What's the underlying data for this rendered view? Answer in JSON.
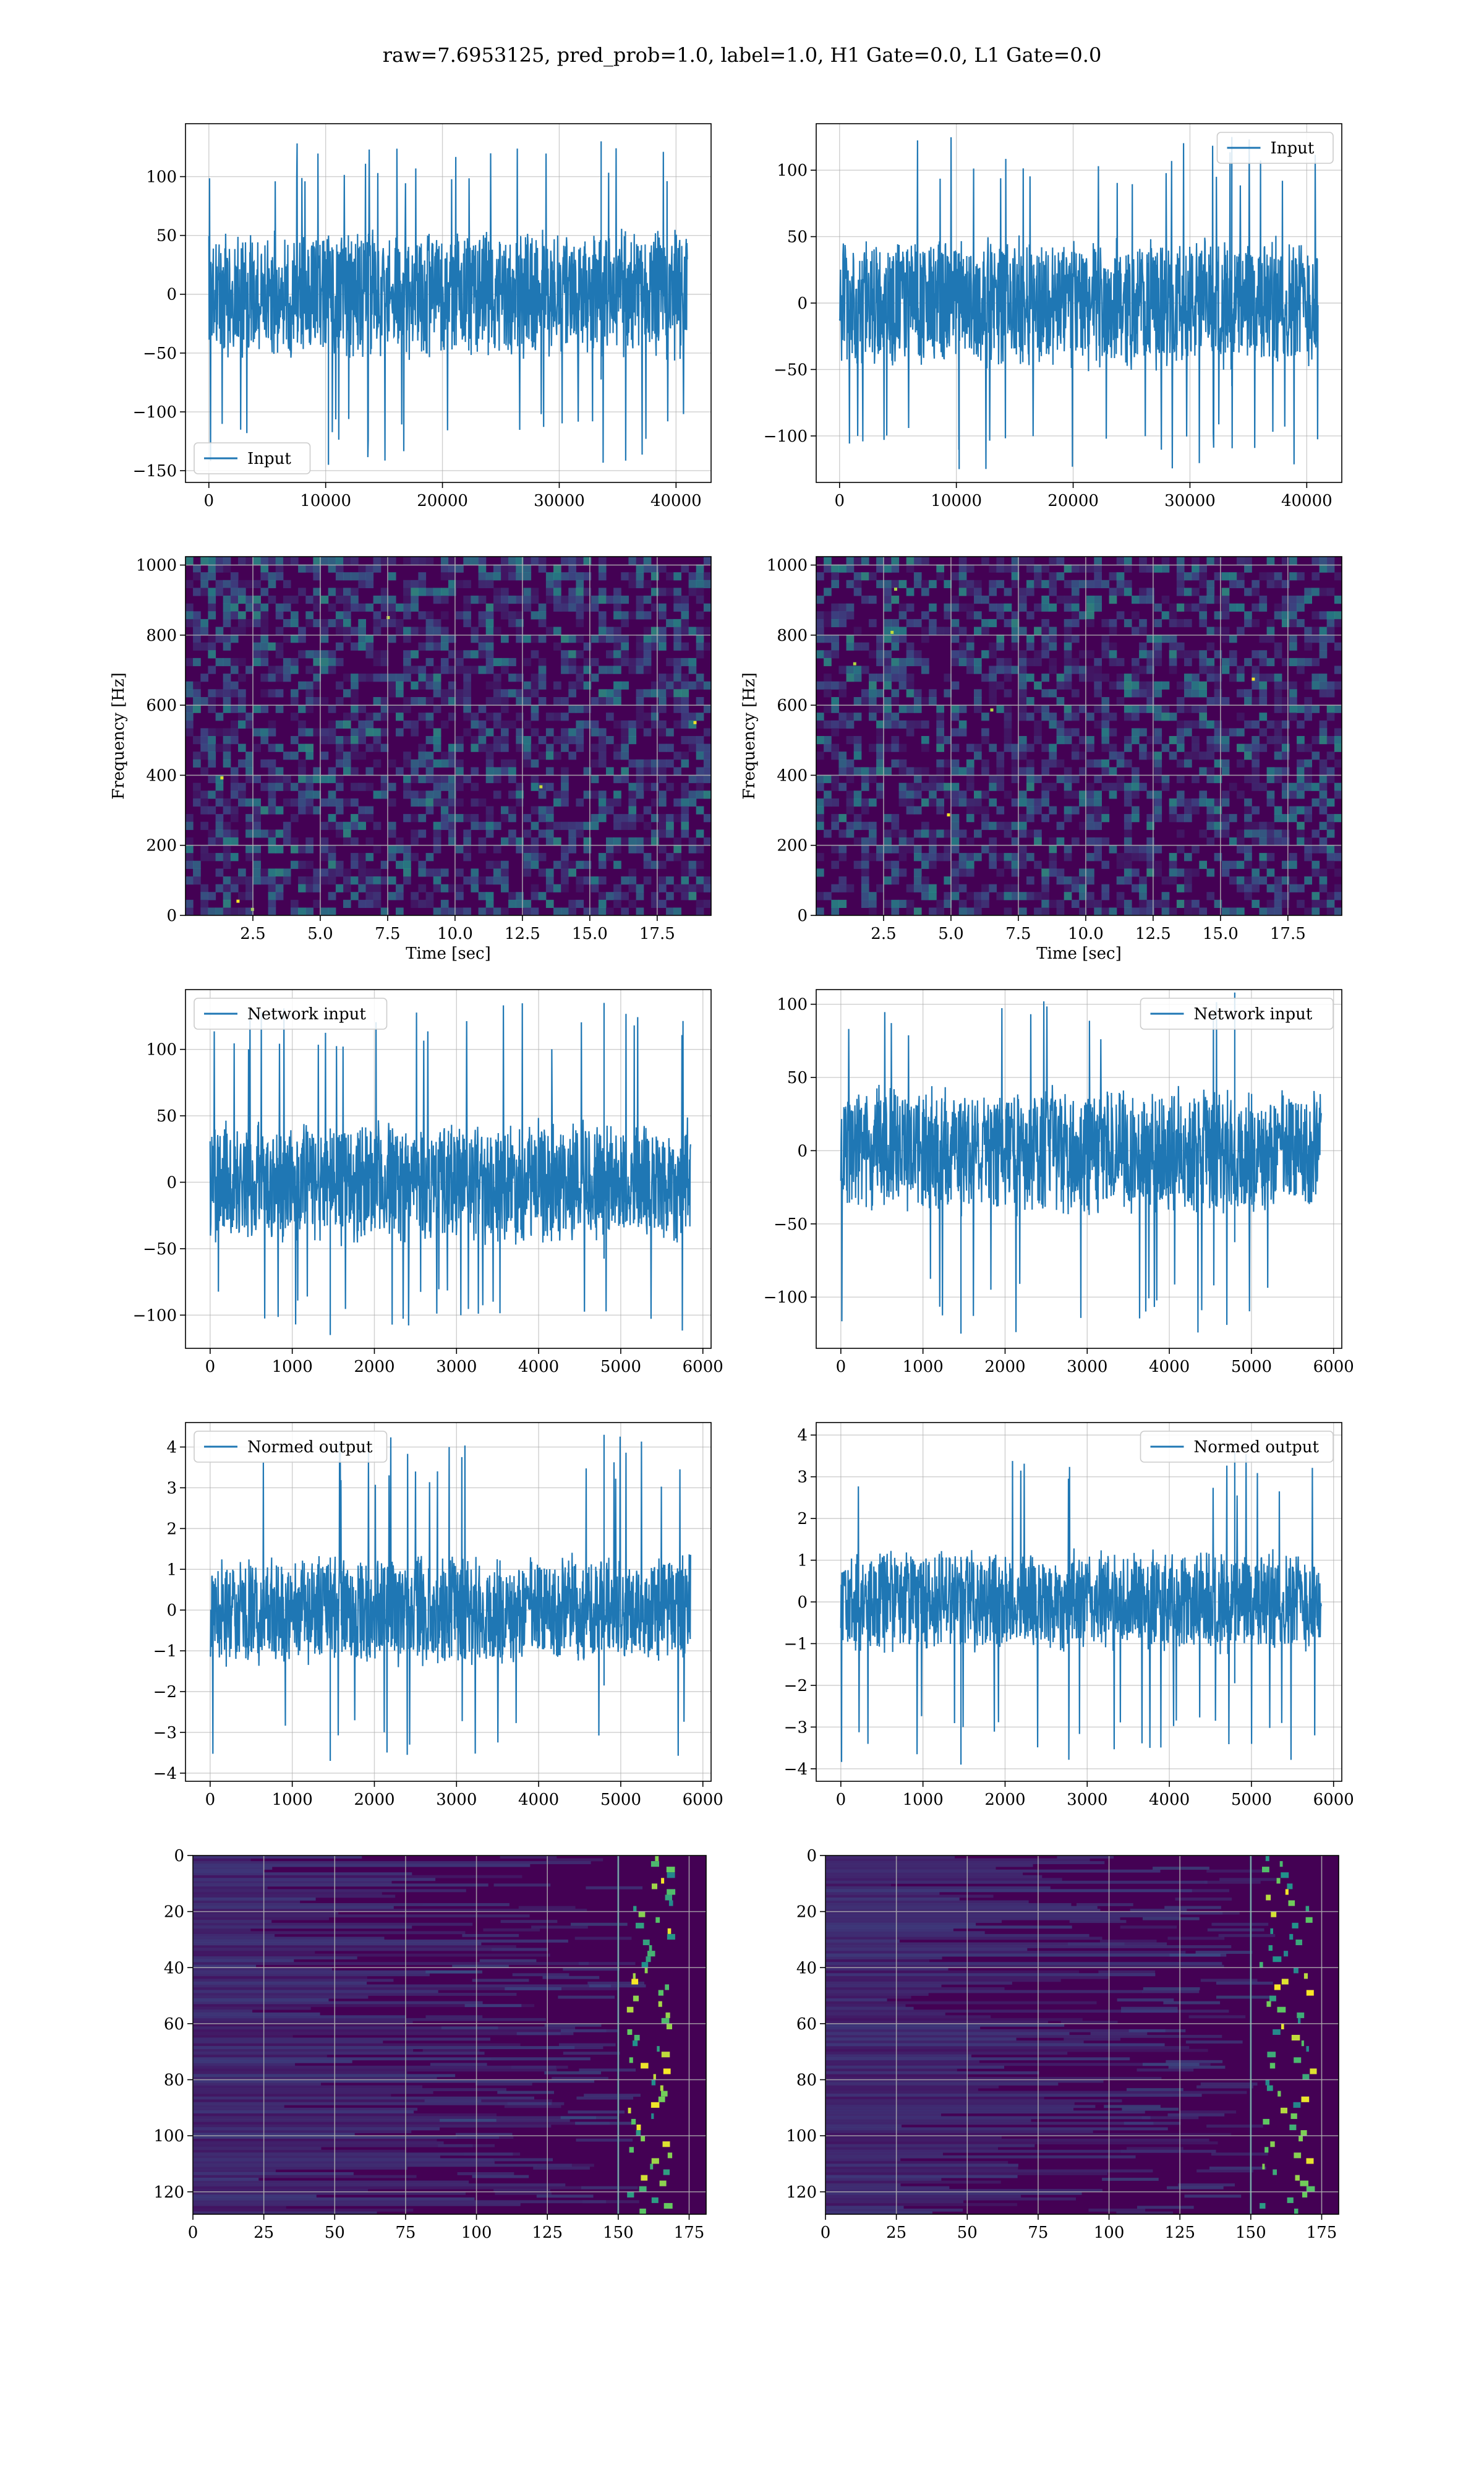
{
  "title": "raw=7.6953125, pred_prob=1.0, label=1.0, H1 Gate=0.0, L1 Gate=0.0",
  "colors": {
    "line": "#1f77b4",
    "grid": "#b0b0b0",
    "heat_low": "#440154",
    "heat_mid": "#21918c",
    "heat_high": "#fde725"
  },
  "chart_data": [
    {
      "id": "r1c1",
      "type": "line",
      "legend": "Input",
      "legend_loc": "lower-left",
      "xlim": [
        -2000,
        43000
      ],
      "ylim": [
        -160,
        145
      ],
      "xticks": [
        0,
        10000,
        20000,
        30000,
        40000
      ],
      "yticks": [
        -150,
        -100,
        -50,
        0,
        50,
        100
      ],
      "x_range": [
        0,
        40960
      ],
      "typ_amp": 45,
      "spike_max": 130,
      "spike_min": -145,
      "seed": 11
    },
    {
      "id": "r1c2",
      "type": "line",
      "legend": "Input",
      "legend_loc": "upper-right",
      "xlim": [
        -2000,
        43000
      ],
      "ylim": [
        -135,
        135
      ],
      "xticks": [
        0,
        10000,
        20000,
        30000,
        40000
      ],
      "yticks": [
        -100,
        -50,
        0,
        50,
        100
      ],
      "x_range": [
        0,
        40960
      ],
      "typ_amp": 40,
      "spike_max": 125,
      "spike_min": -125,
      "seed": 23
    },
    {
      "id": "r2c1",
      "type": "heatmap",
      "xlabel": "Time [sec]",
      "ylabel": "Frequency [Hz]",
      "xlim": [
        0,
        19.5
      ],
      "ylim": [
        0,
        1024
      ],
      "xticks": [
        "2.5",
        "5.0",
        "7.5",
        "10.0",
        "12.5",
        "15.0",
        "17.5"
      ],
      "xtick_values": [
        2.5,
        5,
        7.5,
        10,
        12.5,
        15,
        17.5
      ],
      "yticks": [
        0,
        200,
        400,
        600,
        800,
        1000
      ],
      "seed": 31
    },
    {
      "id": "r2c2",
      "type": "heatmap",
      "xlabel": "Time [sec]",
      "ylabel": "Frequency [Hz]",
      "xlim": [
        0,
        19.5
      ],
      "ylim": [
        0,
        1024
      ],
      "xticks": [
        "2.5",
        "5.0",
        "7.5",
        "10.0",
        "12.5",
        "15.0",
        "17.5"
      ],
      "xtick_values": [
        2.5,
        5,
        7.5,
        10,
        12.5,
        15,
        17.5
      ],
      "yticks": [
        0,
        200,
        400,
        600,
        800,
        1000
      ],
      "seed": 47
    },
    {
      "id": "r3c1",
      "type": "line",
      "legend": "Network input",
      "legend_loc": "upper-left",
      "xlim": [
        -300,
        6100
      ],
      "ylim": [
        -125,
        145
      ],
      "xticks": [
        0,
        1000,
        2000,
        3000,
        4000,
        5000,
        6000
      ],
      "yticks": [
        -100,
        -50,
        0,
        50,
        100
      ],
      "x_range": [
        0,
        5850
      ],
      "typ_amp": 38,
      "spike_max": 135,
      "spike_min": -115,
      "seed": 53
    },
    {
      "id": "r3c2",
      "type": "line",
      "legend": "Network input",
      "legend_loc": "upper-right",
      "xlim": [
        -300,
        6100
      ],
      "ylim": [
        -135,
        110
      ],
      "xticks": [
        0,
        1000,
        2000,
        3000,
        4000,
        5000,
        6000
      ],
      "yticks": [
        -100,
        -50,
        0,
        50,
        100
      ],
      "x_range": [
        0,
        5850
      ],
      "typ_amp": 35,
      "spike_max": 108,
      "spike_min": -125,
      "seed": 67
    },
    {
      "id": "r4c1",
      "type": "line",
      "legend": "Normed output",
      "legend_loc": "upper-left",
      "xlim": [
        -300,
        6100
      ],
      "ylim": [
        -4.2,
        4.6
      ],
      "xticks": [
        0,
        1000,
        2000,
        3000,
        4000,
        5000,
        6000
      ],
      "yticks": [
        -4,
        -3,
        -2,
        -1,
        0,
        1,
        2,
        3,
        4
      ],
      "x_range": [
        0,
        5850
      ],
      "typ_amp": 1.1,
      "spike_max": 4.3,
      "spike_min": -3.7,
      "seed": 71
    },
    {
      "id": "r4c2",
      "type": "line",
      "legend": "Normed output",
      "legend_loc": "upper-right",
      "xlim": [
        -300,
        6100
      ],
      "ylim": [
        -4.3,
        4.3
      ],
      "xticks": [
        0,
        1000,
        2000,
        3000,
        4000,
        5000,
        6000
      ],
      "yticks": [
        -4,
        -3,
        -2,
        -1,
        0,
        1,
        2,
        3,
        4
      ],
      "x_range": [
        0,
        5850
      ],
      "typ_amp": 1.0,
      "spike_max": 3.6,
      "spike_min": -3.9,
      "seed": 89
    },
    {
      "id": "r5c1",
      "type": "heatmap",
      "xlim": [
        0,
        181
      ],
      "ylim": [
        128,
        0
      ],
      "xticks": [
        0,
        25,
        50,
        75,
        100,
        125,
        150,
        175
      ],
      "yticks": [
        0,
        20,
        40,
        60,
        80,
        100,
        120
      ],
      "band_start": 150,
      "band_end": 165,
      "seed": 97
    },
    {
      "id": "r5c2",
      "type": "heatmap",
      "xlim": [
        0,
        181
      ],
      "ylim": [
        128,
        0
      ],
      "xticks": [
        0,
        25,
        50,
        75,
        100,
        125,
        150,
        175
      ],
      "yticks": [
        0,
        20,
        40,
        60,
        80,
        100,
        120
      ],
      "band_start": 150,
      "band_end": 168,
      "seed": 103
    }
  ]
}
